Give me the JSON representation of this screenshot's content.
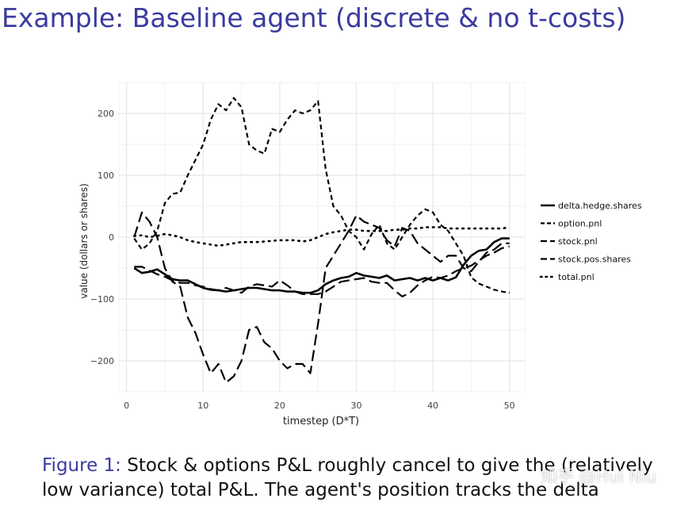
{
  "slide": {
    "title": "Example: Baseline agent (discrete & no t-costs)"
  },
  "caption": {
    "label": "Figure 1:",
    "text": " Stock & options P&L roughly cancel to give the (relatively low variance) total P&L. The agent's position tracks the delta"
  },
  "watermark": "知乎 @Hui Niu",
  "chart_data": {
    "type": "line",
    "title": "",
    "xlabel": "timestep (D*T)",
    "ylabel": "value (dollars or shares)",
    "xlim": [
      -1,
      52
    ],
    "ylim": [
      -250,
      250
    ],
    "x_ticks": [
      0,
      10,
      20,
      30,
      40,
      50
    ],
    "y_ticks": [
      -200,
      -100,
      0,
      100,
      200
    ],
    "grid": true,
    "legend_position": "right",
    "x": [
      1,
      2,
      3,
      4,
      5,
      6,
      7,
      8,
      9,
      10,
      11,
      12,
      13,
      14,
      15,
      16,
      17,
      18,
      19,
      20,
      21,
      22,
      23,
      24,
      25,
      26,
      27,
      28,
      29,
      30,
      31,
      32,
      33,
      34,
      35,
      36,
      37,
      38,
      39,
      40,
      41,
      42,
      43,
      44,
      45,
      46,
      47,
      48,
      49,
      50
    ],
    "series": [
      {
        "name": "delta.hedge.shares",
        "dash": "solid",
        "values": [
          -50,
          -58,
          -56,
          -52,
          -60,
          -68,
          -70,
          -70,
          -76,
          -82,
          -85,
          -86,
          -88,
          -86,
          -84,
          -82,
          -82,
          -84,
          -86,
          -86,
          -88,
          -88,
          -90,
          -90,
          -86,
          -76,
          -70,
          -66,
          -64,
          -58,
          -62,
          -64,
          -66,
          -62,
          -70,
          -68,
          -66,
          -70,
          -66,
          -70,
          -66,
          -70,
          -65,
          -45,
          -30,
          -22,
          -20,
          -8,
          -2,
          -2
        ]
      },
      {
        "name": "option.pnl",
        "dash": "short",
        "values": [
          -2,
          -20,
          -10,
          10,
          55,
          70,
          72,
          100,
          125,
          150,
          190,
          215,
          205,
          225,
          210,
          150,
          140,
          135,
          175,
          170,
          190,
          205,
          200,
          205,
          220,
          110,
          50,
          35,
          10,
          0,
          -20,
          5,
          20,
          -10,
          -20,
          0,
          20,
          35,
          45,
          40,
          20,
          10,
          -10,
          -30,
          -65,
          -75,
          -80,
          -85,
          -88,
          -90
        ]
      },
      {
        "name": "stock.pnl",
        "dash": "long",
        "values": [
          0,
          40,
          25,
          0,
          -50,
          -72,
          -80,
          -130,
          -155,
          -190,
          -220,
          -205,
          -235,
          -225,
          -200,
          -150,
          -145,
          -170,
          -180,
          -200,
          -212,
          -205,
          -205,
          -220,
          -140,
          -50,
          -30,
          -10,
          10,
          35,
          25,
          20,
          15,
          -5,
          -15,
          15,
          10,
          -10,
          -20,
          -30,
          -40,
          -30,
          -30,
          -50,
          -55,
          -40,
          -25,
          -20,
          -10,
          -10
        ]
      },
      {
        "name": "stock.pos.shares",
        "dash": "long",
        "values": [
          -48,
          -48,
          -54,
          -60,
          -64,
          -70,
          -74,
          -74,
          -78,
          -80,
          -84,
          -86,
          -82,
          -86,
          -90,
          -80,
          -76,
          -78,
          -80,
          -70,
          -78,
          -88,
          -92,
          -92,
          -92,
          -88,
          -80,
          -72,
          -70,
          -68,
          -66,
          -72,
          -74,
          -74,
          -86,
          -96,
          -90,
          -78,
          -70,
          -64,
          -66,
          -62,
          -55,
          -50,
          -46,
          -38,
          -30,
          -25,
          -18,
          -15
        ]
      },
      {
        "name": "total.pnl",
        "dash": "dotted",
        "values": [
          2,
          3,
          0,
          2,
          5,
          3,
          0,
          -5,
          -8,
          -10,
          -12,
          -14,
          -12,
          -10,
          -8,
          -8,
          -8,
          -7,
          -6,
          -5,
          -5,
          -5,
          -7,
          -5,
          0,
          5,
          8,
          10,
          12,
          12,
          10,
          10,
          10,
          10,
          12,
          12,
          14,
          14,
          16,
          16,
          16,
          14,
          14,
          14,
          14,
          14,
          14,
          14,
          14,
          16
        ]
      }
    ]
  }
}
